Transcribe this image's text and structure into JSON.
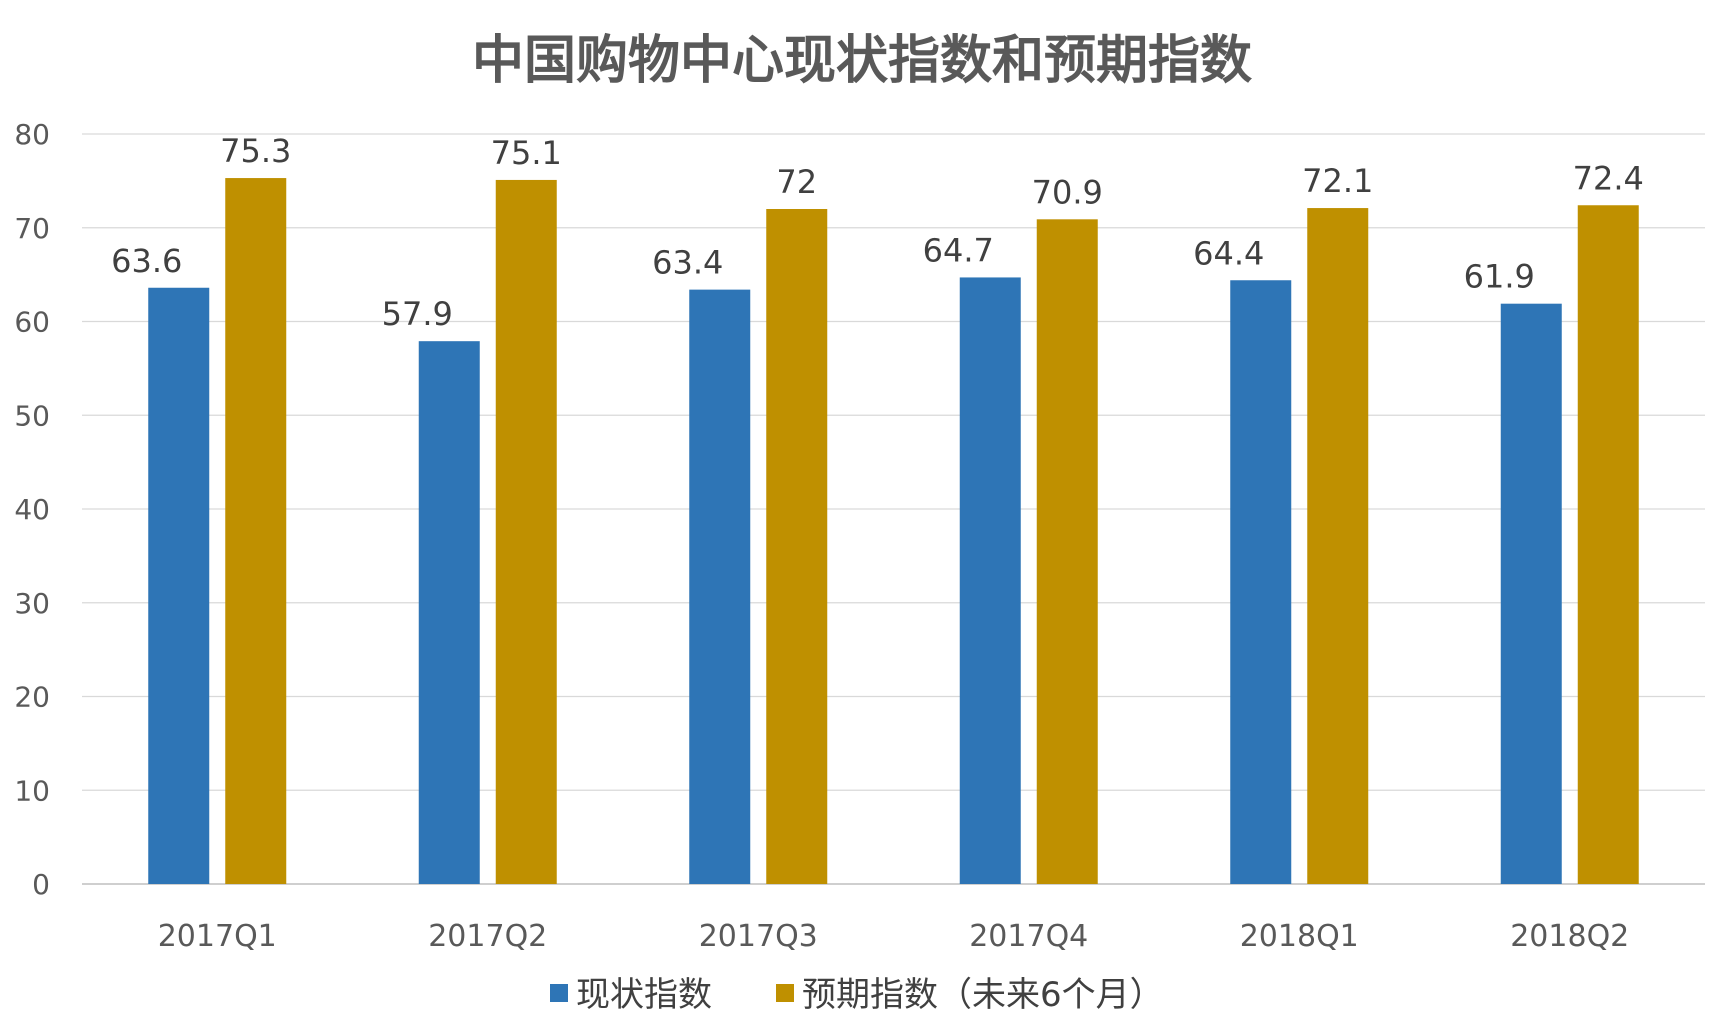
{
  "chart_data": {
    "type": "bar",
    "title": "中国购物中心现状指数和预期指数",
    "categories": [
      "2017Q1",
      "2017Q2",
      "2017Q3",
      "2017Q4",
      "2018Q1",
      "2018Q2"
    ],
    "series": [
      {
        "name": "现状指数",
        "color": "#2E75B6",
        "values": [
          63.6,
          57.9,
          63.4,
          64.7,
          64.4,
          61.9
        ],
        "labels": [
          "63.6",
          "57.9",
          "63.4",
          "64.7",
          "64.4",
          "61.9"
        ]
      },
      {
        "name": "预期指数（未来6个月）",
        "color": "#BF9000",
        "values": [
          75.3,
          75.1,
          72,
          70.9,
          72.1,
          72.4
        ],
        "labels": [
          "75.3",
          "75.1",
          "72",
          "70.9",
          "72.1",
          "72.4"
        ]
      }
    ],
    "ylim": [
      0,
      80
    ],
    "yticks": [
      0,
      10,
      20,
      30,
      40,
      50,
      60,
      70,
      80
    ],
    "grid": true,
    "legend": "bottom",
    "xlabel": "",
    "ylabel": ""
  }
}
